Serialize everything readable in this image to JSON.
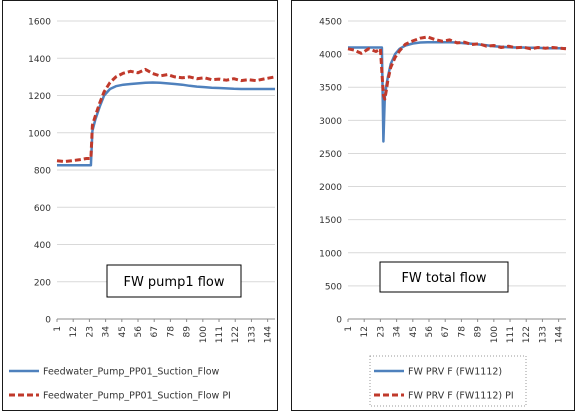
{
  "chart_data": [
    {
      "type": "line",
      "annotation": "FW pump1 flow",
      "ylim": [
        0,
        1600
      ],
      "yticks": [
        "0",
        "200",
        "400",
        "600",
        "800",
        "1000",
        "1200",
        "1400",
        "1600"
      ],
      "xticks": [
        "1",
        "12",
        "23",
        "34",
        "45",
        "56",
        "67",
        "78",
        "89",
        "100",
        "111",
        "122",
        "133",
        "144"
      ],
      "grid": true,
      "legend_position": "bottom",
      "series": [
        {
          "name": "Feedwater_Pump_PP01_Suction_Flow",
          "color": "#4f81bd",
          "style": "solid",
          "x": [
            1,
            20,
            24,
            25,
            27,
            30,
            33,
            37,
            41,
            46,
            51,
            56,
            61,
            66,
            71,
            76,
            81,
            86,
            91,
            96,
            101,
            106,
            111,
            116,
            121,
            126,
            131,
            136,
            141,
            149
          ],
          "y": [
            825,
            825,
            825,
            1010,
            1070,
            1140,
            1200,
            1235,
            1250,
            1258,
            1262,
            1265,
            1268,
            1270,
            1268,
            1265,
            1262,
            1258,
            1252,
            1248,
            1245,
            1242,
            1240,
            1238,
            1236,
            1235,
            1235,
            1235,
            1235,
            1235
          ]
        },
        {
          "name": "Feedwater_Pump_PP01_Suction_Flow PI",
          "color": "#c0392b",
          "style": "dashed",
          "x": [
            1,
            6,
            11,
            16,
            21,
            24,
            25,
            27,
            30,
            33,
            37,
            41,
            46,
            51,
            56,
            61,
            66,
            71,
            76,
            81,
            86,
            91,
            96,
            101,
            106,
            111,
            116,
            121,
            126,
            131,
            136,
            141,
            149
          ],
          "y": [
            850,
            845,
            850,
            855,
            862,
            862,
            1040,
            1090,
            1160,
            1220,
            1270,
            1300,
            1320,
            1330,
            1322,
            1340,
            1318,
            1305,
            1312,
            1300,
            1295,
            1300,
            1290,
            1295,
            1285,
            1288,
            1282,
            1290,
            1280,
            1285,
            1280,
            1288,
            1300
          ]
        }
      ]
    },
    {
      "type": "line",
      "annotation": "FW total flow",
      "ylim": [
        0,
        4500
      ],
      "yticks": [
        "0",
        "500",
        "1000",
        "1500",
        "2000",
        "2500",
        "3000",
        "3500",
        "4000",
        "4500"
      ],
      "xticks": [
        "1",
        "12",
        "23",
        "34",
        "45",
        "56",
        "67",
        "78",
        "89",
        "100",
        "111",
        "122",
        "133",
        "144"
      ],
      "grid": true,
      "legend_position": "bottom",
      "series": [
        {
          "name": "FW PRV F (FW1112)",
          "color": "#4f81bd",
          "style": "solid",
          "x": [
            1,
            22,
            24,
            25,
            26,
            27,
            28,
            30,
            33,
            36,
            40,
            45,
            50,
            55,
            60,
            65,
            70,
            75,
            80,
            85,
            90,
            95,
            100,
            105,
            110,
            115,
            120,
            125,
            130,
            135,
            140,
            149
          ],
          "y": [
            4100,
            4100,
            4100,
            2680,
            3350,
            3520,
            3650,
            3850,
            4000,
            4080,
            4130,
            4160,
            4175,
            4180,
            4180,
            4180,
            4178,
            4175,
            4165,
            4155,
            4145,
            4135,
            4120,
            4112,
            4105,
            4100,
            4100,
            4095,
            4095,
            4090,
            4090,
            4090
          ]
        },
        {
          "name": "FW PRV F (FW1112) PI",
          "color": "#c0392b",
          "style": "dashed",
          "x": [
            1,
            5,
            10,
            15,
            20,
            23,
            25,
            26,
            27,
            28,
            30,
            33,
            36,
            40,
            45,
            50,
            55,
            60,
            65,
            70,
            75,
            80,
            85,
            90,
            95,
            100,
            105,
            110,
            115,
            120,
            125,
            130,
            135,
            140,
            149
          ],
          "y": [
            4080,
            4060,
            4010,
            4080,
            4040,
            4080,
            3380,
            3320,
            3450,
            3600,
            3800,
            3950,
            4050,
            4150,
            4200,
            4240,
            4260,
            4220,
            4195,
            4215,
            4170,
            4180,
            4145,
            4155,
            4120,
            4130,
            4100,
            4120,
            4095,
            4105,
            4080,
            4100,
            4090,
            4100,
            4080
          ]
        }
      ]
    }
  ]
}
